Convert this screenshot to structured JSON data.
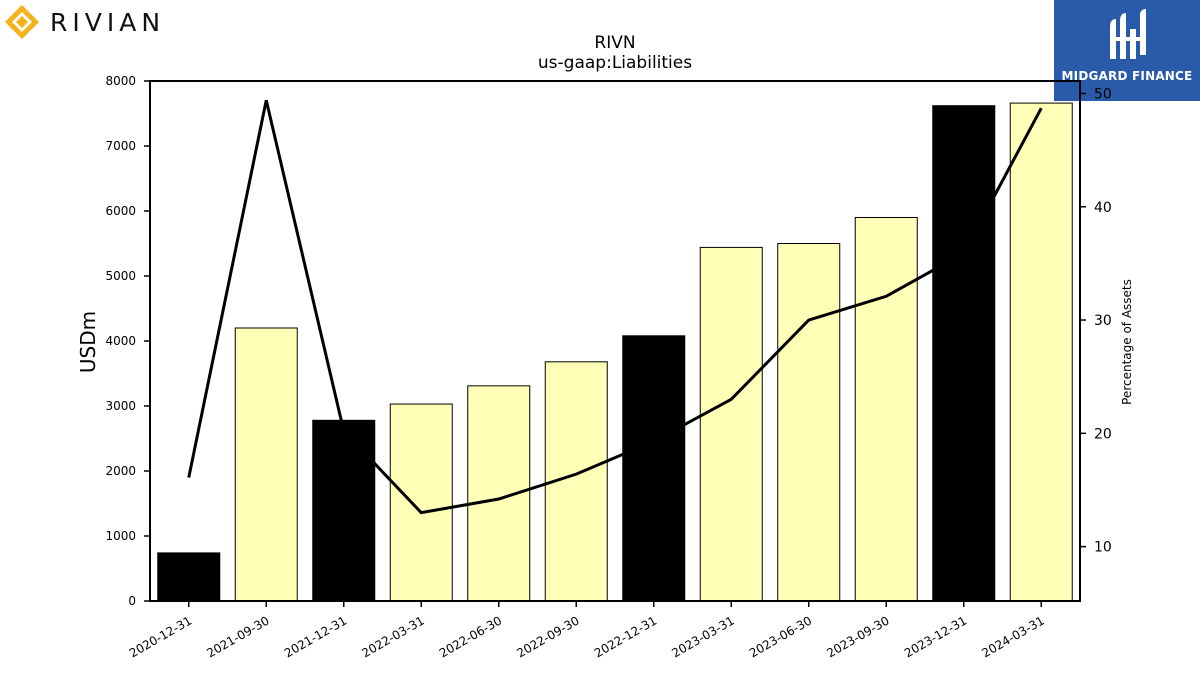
{
  "brand": {
    "wordmark": "RIVIAN",
    "badge_text": "MIDGARD FINANCE",
    "badge_color": "#2a5bab",
    "logo_color": "#f2b418"
  },
  "chart_data": {
    "type": "bar",
    "title": "RIVN",
    "subtitle": "us-gaap:Liabilities",
    "ylabel": "USDm",
    "y2label": "Percentage of Assets",
    "ylim": [
      0,
      8000
    ],
    "y2lim": [
      5.2,
      51.1
    ],
    "yticks": [
      "0",
      "1000",
      "2000",
      "3000",
      "4000",
      "5000",
      "6000",
      "7000",
      "8000"
    ],
    "y2ticks": [
      "10",
      "20",
      "30",
      "40",
      "50"
    ],
    "categories": [
      "2020-12-31",
      "2021-09-30",
      "2021-12-31",
      "2022-03-31",
      "2022-06-30",
      "2022-09-30",
      "2022-12-31",
      "2023-03-31",
      "2023-06-30",
      "2023-09-30",
      "2023-12-31",
      "2024-03-31"
    ],
    "series": [
      {
        "kind": "bar",
        "values": [
          740,
          4200,
          2780,
          3030,
          3310,
          3680,
          4080,
          5440,
          5500,
          5900,
          7620,
          7660
        ]
      },
      {
        "kind": "line",
        "axis": "right",
        "values": [
          16.1,
          49.4,
          20.2,
          13.0,
          14.2,
          16.4,
          19.3,
          23.0,
          30.0,
          32.1,
          35.9,
          48.7
        ]
      }
    ],
    "bar_colors": [
      "#000000",
      "#ffffb8",
      "#000000",
      "#ffffb8",
      "#ffffb8",
      "#ffffb8",
      "#000000",
      "#ffffb8",
      "#ffffb8",
      "#ffffb8",
      "#000000",
      "#ffffb8"
    ],
    "grid": false
  }
}
